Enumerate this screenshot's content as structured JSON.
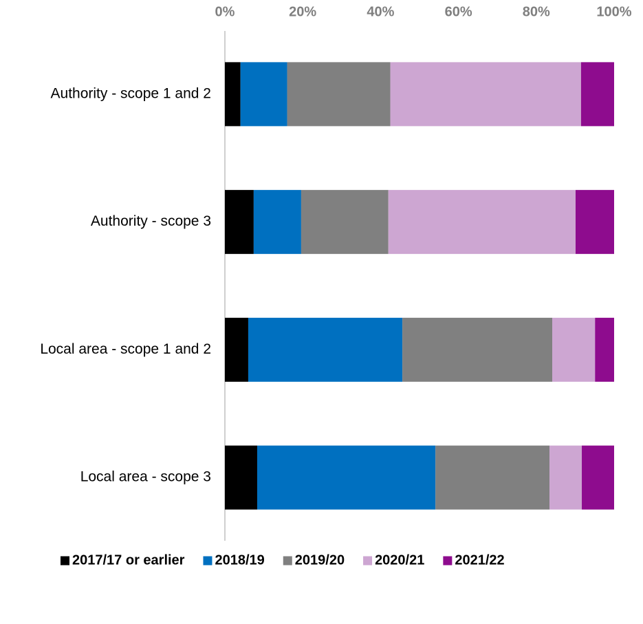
{
  "chart_data": {
    "type": "stacked-barh",
    "categories": [
      "Authority - scope 1 and 2",
      "Authority - scope 3",
      "Local area - scope 1 and 2",
      "Local area - scope 3"
    ],
    "series": [
      {
        "name": "2017/17 or earlier",
        "color": "#000000",
        "values": [
          4,
          7.4,
          6,
          8.3
        ]
      },
      {
        "name": "2018/19",
        "color": "#0070c0",
        "values": [
          12,
          12.2,
          39.6,
          45.8
        ]
      },
      {
        "name": "2019/20",
        "color": "#808080",
        "values": [
          26.5,
          22.4,
          38.5,
          29.3
        ]
      },
      {
        "name": "2020/21",
        "color": "#cda6d2",
        "values": [
          49,
          48.1,
          11,
          8.3
        ]
      },
      {
        "name": "2021/22",
        "color": "#8e0c8e",
        "values": [
          8.5,
          9.9,
          4.9,
          8.3
        ]
      }
    ],
    "xlim": [
      0,
      100
    ],
    "xticks": [
      {
        "value": 0,
        "label": "0%"
      },
      {
        "value": 20,
        "label": "20%"
      },
      {
        "value": 40,
        "label": "40%"
      },
      {
        "value": 60,
        "label": "60%"
      },
      {
        "value": 80,
        "label": "80%"
      },
      {
        "value": 100,
        "label": "100%"
      }
    ],
    "legend": "bottom"
  }
}
